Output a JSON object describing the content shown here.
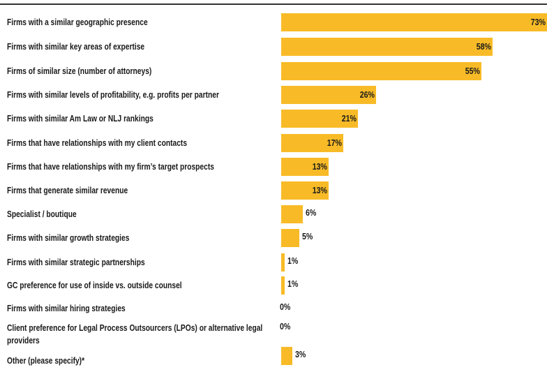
{
  "chart_data": {
    "type": "bar",
    "orientation": "horizontal",
    "color": "#f8bb27",
    "categories": [
      "Firms with a similar geographic presence",
      "Firms with similar key areas of expertise",
      "Firms of similar size (number of attorneys)",
      "Firms with similar levels of profitability, e.g. profits per partner",
      "Firms with similar Am Law or NLJ rankings",
      "Firms that have relationships with my client contacts",
      "Firms that have relationships with my firm’s target prospects",
      "Firms that generate similar revenue",
      "Specialist / boutique",
      "Firms with similar growth strategies",
      "Firms with similar strategic partnerships",
      "GC preference for use of inside vs. outside counsel",
      "Firms with similar hiring strategies",
      "Client preference for Legal Process Outsourcers (LPOs) or alternative legal providers",
      "Other (please specify)*"
    ],
    "values": [
      73,
      58,
      55,
      26,
      21,
      17,
      13,
      13,
      6,
      5,
      1,
      1,
      0,
      0,
      3
    ],
    "value_labels": [
      "73%",
      "58%",
      "55%",
      "26%",
      "21%",
      "17%",
      "13%",
      "13%",
      "6%",
      "5%",
      "1%",
      "1%",
      "0%",
      "0%",
      "3%"
    ]
  }
}
